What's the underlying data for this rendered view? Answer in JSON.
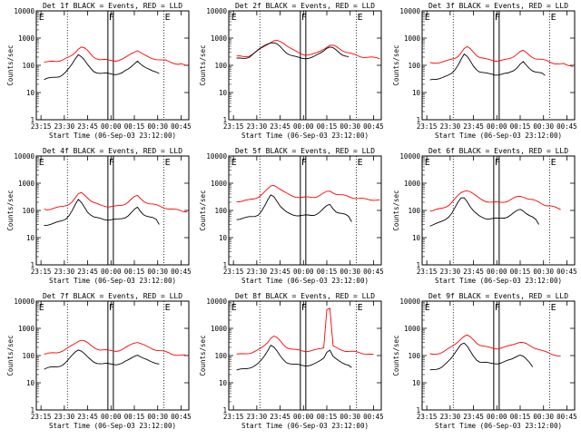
{
  "chart_data": {
    "type": "line",
    "shared": {
      "xlabel": "Start Time (06-Sep-03 23:12:00)",
      "ylabel": "Counts/sec",
      "x_ticks": [
        "23:15",
        "23:30",
        "23:45",
        "00:00",
        "00:15",
        "00:30",
        "00:45"
      ],
      "x_tick_minutes": [
        3,
        18,
        33,
        48,
        63,
        78,
        93
      ],
      "xlim_minutes": [
        0,
        98
      ],
      "y_scale": "log",
      "ylim": [
        1,
        10000
      ],
      "y_ticks": [
        1,
        10,
        100,
        1000,
        10000
      ],
      "y_tick_labels": [
        "1",
        "10",
        "100",
        "1000",
        "10000"
      ],
      "x_step_minutes": 2,
      "x_start_minutes": 5,
      "attenuator_markers_minutes": [
        46,
        49.5
      ],
      "boundary_markers_minutes": [
        20,
        82
      ],
      "letters": [
        {
          "text": "E",
          "minute": 1
        },
        {
          "text": "F",
          "minute": 46
        },
        {
          "text": "E",
          "minute": 82
        }
      ]
    },
    "panels": [
      {
        "title": "Det 1f BLACK = Events, RED = LLD",
        "series": [
          {
            "name": "LLD",
            "color": "#ff0000",
            "values": [
              130,
              130,
              135,
              140,
              145,
              150,
              160,
              175,
              195,
              230,
              300,
              420,
              480,
              420,
              330,
              250,
              200,
              180,
              165,
              160,
              155,
              150,
              150,
              150,
              155,
              165,
              185,
              220,
              270,
              320,
              360,
              290,
              240,
              210,
              190,
              180,
              170,
              160,
              150,
              150,
              140,
              130,
              120,
              110,
              110,
              100,
              95
            ]
          },
          {
            "name": "Events",
            "color": "#000000",
            "values": [
              30,
              32,
              34,
              36,
              38,
              40,
              45,
              55,
              75,
              110,
              180,
              260,
              210,
              150,
              100,
              75,
              60,
              55,
              52,
              50,
              50,
              48,
              48,
              48,
              50,
              52,
              60,
              70,
              90,
              120,
              150,
              110,
              85,
              75,
              70,
              65,
              60,
              50
            ]
          }
        ]
      },
      {
        "title": "Det 2f BLACK = Events, RED = LLD",
        "series": [
          {
            "name": "LLD",
            "color": "#ff0000",
            "values": [
              210,
              210,
              210,
              215,
              225,
              250,
              290,
              350,
              430,
              520,
              620,
              700,
              770,
              780,
              740,
              660,
              560,
              460,
              380,
              320,
              280,
              260,
              250,
              250,
              250,
              260,
              290,
              340,
              410,
              480,
              540,
              520,
              470,
              410,
              360,
              320,
              290,
              260,
              240,
              220,
              210,
              200,
              200,
              195,
              190,
              185,
              180
            ]
          },
          {
            "name": "Events",
            "color": "#000000",
            "values": [
              175,
              175,
              180,
              190,
              205,
              240,
              290,
              360,
              450,
              560,
              640,
              680,
              650,
              580,
              480,
              380,
              300,
              250,
              220,
              200,
              190,
              185,
              185,
              185,
              190,
              205,
              240,
              290,
              360,
              440,
              470,
              420,
              350,
              290,
              250,
              230,
              210
            ]
          }
        ]
      },
      {
        "title": "Det 3f BLACK = Events, RED = LLD",
        "series": [
          {
            "name": "LLD",
            "color": "#ff0000",
            "values": [
              120,
              120,
              125,
              130,
              135,
              140,
              150,
              165,
              185,
              220,
              290,
              400,
              460,
              400,
              310,
              240,
              200,
              180,
              165,
              160,
              155,
              150,
              150,
              150,
              155,
              165,
              185,
              220,
              270,
              320,
              340,
              280,
              230,
              200,
              180,
              170,
              160,
              150,
              140,
              130,
              120,
              115,
              110,
              110,
              100,
              100,
              95
            ]
          },
          {
            "name": "Events",
            "color": "#000000",
            "values": [
              28,
              30,
              32,
              34,
              36,
              38,
              42,
              50,
              70,
              105,
              170,
              250,
              200,
              140,
              95,
              72,
              58,
              53,
              50,
              48,
              48,
              46,
              46,
              46,
              48,
              50,
              58,
              68,
              85,
              110,
              130,
              95,
              75,
              65,
              60,
              55,
              50,
              40
            ]
          }
        ]
      },
      {
        "title": "Det 4f BLACK = Events, RED = LLD",
        "series": [
          {
            "name": "LLD",
            "color": "#ff0000",
            "values": [
              110,
              110,
              115,
              120,
              125,
              130,
              140,
              155,
              175,
              210,
              280,
              390,
              440,
              380,
              300,
              230,
              190,
              170,
              155,
              150,
              145,
              140,
              140,
              140,
              145,
              155,
              175,
              210,
              260,
              310,
              340,
              270,
              225,
              195,
              175,
              165,
              155,
              145,
              135,
              125,
              115,
              110,
              105,
              105,
              100,
              95,
              90
            ]
          },
          {
            "name": "Events",
            "color": "#000000",
            "values": [
              28,
              30,
              32,
              34,
              36,
              38,
              42,
              50,
              68,
              100,
              160,
              240,
              190,
              135,
              90,
              70,
              56,
              52,
              50,
              48,
              47,
              46,
              46,
              46,
              47,
              50,
              56,
              66,
              82,
              105,
              125,
              90,
              72,
              64,
              58,
              52,
              45,
              30
            ]
          }
        ]
      },
      {
        "title": "Det 5f BLACK = Events, RED = LLD",
        "series": [
          {
            "name": "LLD",
            "color": "#ff0000",
            "values": [
              220,
              220,
              225,
              230,
              240,
              255,
              280,
              320,
              380,
              470,
              600,
              780,
              850,
              760,
              620,
              500,
              420,
              370,
              340,
              320,
              310,
              300,
              300,
              300,
              305,
              315,
              335,
              370,
              420,
              480,
              510,
              460,
              410,
              380,
              360,
              340,
              320,
              300,
              290,
              280,
              270,
              260,
              255,
              250,
              250,
              245,
              240
            ]
          },
          {
            "name": "Events",
            "color": "#000000",
            "values": [
              48,
              50,
              52,
              54,
              56,
              58,
              62,
              72,
              95,
              140,
              230,
              360,
              330,
              230,
              150,
              110,
              85,
              75,
              70,
              68,
              66,
              65,
              65,
              65,
              66,
              70,
              78,
              92,
              115,
              145,
              165,
              120,
              92,
              80,
              74,
              68,
              60,
              40
            ]
          }
        ]
      },
      {
        "title": "Det 6f BLACK = Events, RED = LLD",
        "series": [
          {
            "name": "LLD",
            "color": "#ff0000",
            "values": [
              100,
              100,
              105,
              110,
              120,
              135,
              160,
              200,
              260,
              340,
              440,
              520,
              560,
              500,
              400,
              320,
              270,
              240,
              220,
              210,
              200,
              195,
              195,
              200,
              210,
              225,
              250,
              280,
              310,
              330,
              320,
              290,
              260,
              240,
              220,
              200,
              180,
              160,
              150,
              140,
              130,
              120,
              110
            ]
          },
          {
            "name": "Events",
            "color": "#000000",
            "values": [
              28,
              30,
              32,
              35,
              40,
              48,
              60,
              80,
              120,
              190,
              280,
              300,
              220,
              140,
              95,
              72,
              60,
              55,
              52,
              50,
              50,
              50,
              50,
              52,
              55,
              60,
              68,
              80,
              95,
              110,
              100,
              80,
              65,
              55,
              45,
              30
            ]
          }
        ]
      },
      {
        "title": "Det 7f BLACK = Events, RED = LLD",
        "series": [
          {
            "name": "LLD",
            "color": "#ff0000",
            "values": [
              115,
              115,
              120,
              125,
              130,
              140,
              150,
              170,
              195,
              235,
              290,
              350,
              380,
              340,
              280,
              230,
              200,
              180,
              165,
              160,
              155,
              150,
              150,
              150,
              155,
              165,
              185,
              215,
              260,
              300,
              320,
              280,
              240,
              210,
              190,
              175,
              165,
              155,
              145,
              135,
              125,
              115,
              110,
              105,
              100,
              100,
              95
            ]
          },
          {
            "name": "Events",
            "color": "#000000",
            "values": [
              32,
              34,
              36,
              38,
              40,
              42,
              46,
              55,
              72,
              100,
              140,
              170,
              150,
              115,
              85,
              68,
              58,
              54,
              52,
              50,
              50,
              48,
              48,
              48,
              50,
              52,
              58,
              66,
              80,
              98,
              110,
              90,
              76,
              68,
              62,
              58,
              54,
              50
            ]
          }
        ]
      },
      {
        "title": "Det 8f BLACK = Events, RED = LLD",
        "series": [
          {
            "name": "LLD",
            "color": "#ff0000",
            "values": [
              110,
              110,
              115,
              120,
              125,
              130,
              140,
              160,
              190,
              240,
              320,
              450,
              510,
              440,
              340,
              260,
              210,
              185,
              170,
              160,
              155,
              150,
              148,
              148,
              150,
              155,
              165,
              180,
              200,
              5200,
              5500,
              220,
              190,
              170,
              160,
              150,
              145,
              140,
              135,
              130,
              125,
              120,
              115,
              110,
              105
            ]
          },
          {
            "name": "Events",
            "color": "#000000",
            "values": [
              28,
              30,
              32,
              34,
              36,
              38,
              42,
              50,
              68,
              100,
              160,
              250,
              200,
              140,
              95,
              72,
              58,
              52,
              48,
              46,
              45,
              44,
              44,
              44,
              45,
              48,
              55,
              66,
              85,
              140,
              160,
              90,
              72,
              62,
              56,
              50,
              45,
              35
            ]
          }
        ]
      },
      {
        "title": "Det 9f BLACK = Events, RED = LLD",
        "series": [
          {
            "name": "LLD",
            "color": "#ff0000",
            "values": [
              110,
              110,
              115,
              125,
              135,
              150,
              175,
              210,
              260,
              330,
              420,
              500,
              540,
              470,
              380,
              300,
              250,
              220,
              205,
              195,
              190,
              185,
              185,
              190,
              200,
              215,
              240,
              270,
              300,
              310,
              290,
              260,
              230,
              210,
              190,
              170,
              150,
              135,
              125,
              115,
              110,
              100,
              95
            ]
          },
          {
            "name": "Events",
            "color": "#000000",
            "values": [
              28,
              30,
              32,
              35,
              40,
              48,
              60,
              82,
              125,
              190,
              270,
              280,
              210,
              140,
              95,
              72,
              60,
              56,
              54,
              52,
              52,
              52,
              52,
              54,
              58,
              64,
              72,
              85,
              100,
              105,
              90,
              70,
              55,
              40
            ]
          }
        ]
      }
    ]
  }
}
